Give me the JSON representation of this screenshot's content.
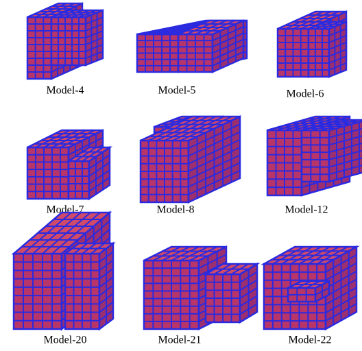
{
  "models": [
    {
      "label": "Model-4"
    },
    {
      "label": "Model-5"
    },
    {
      "label": "Model-6"
    },
    {
      "label": "Model-7"
    },
    {
      "label": "Model-8"
    },
    {
      "label": "Model-12"
    },
    {
      "label": "Model-20"
    },
    {
      "label": "Model-21"
    },
    {
      "label": "Model-22"
    }
  ]
}
